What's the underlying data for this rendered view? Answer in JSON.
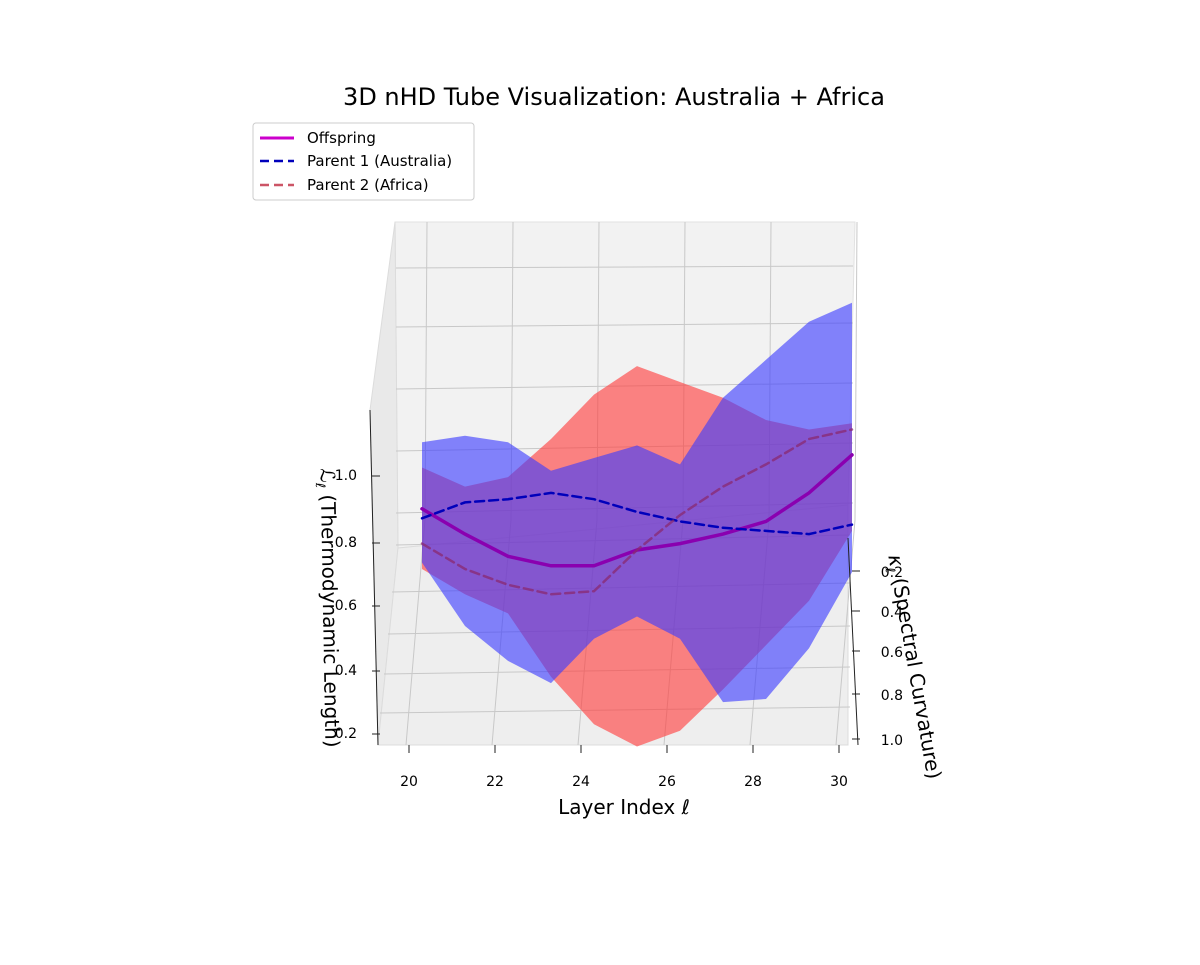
{
  "chart_data": {
    "type": "line",
    "title": "3D nHD Tube Visualization: Australia + Africa",
    "xlabel": "Layer Index ℓ",
    "ylabel": "κ",
    "ylabel_sub": "ℓ",
    "ylabel_rest": " (Spectral Curvature)",
    "zlabel": "ℒ",
    "zlabel_sub": "ℓ",
    "zlabel_rest": " (Thermodynamic Length)",
    "x_ticks": [
      "20",
      "22",
      "24",
      "26",
      "28",
      "30"
    ],
    "y_ticks": [
      "0.2",
      "0.4",
      "0.6",
      "0.8",
      "1.0"
    ],
    "z_ticks": [
      "0.2",
      "0.4",
      "0.6",
      "0.8",
      "1.0"
    ],
    "xlim": [
      19.2,
      30.8
    ],
    "zlim": [
      0.15,
      1.35
    ],
    "grid": true,
    "legend_position": "top-left",
    "x": [
      20,
      21,
      22,
      23,
      24,
      25,
      26,
      27,
      28,
      29,
      30
    ],
    "series": [
      {
        "name": "Offspring",
        "color": "#cc00cc",
        "style": "solid",
        "values": [
          1.05,
          0.97,
          0.9,
          0.87,
          0.87,
          0.92,
          0.94,
          0.97,
          1.01,
          1.1,
          1.22
        ]
      },
      {
        "name": "Parent 1 (Australia)",
        "color": "#0000bb",
        "style": "dashed",
        "values": [
          1.02,
          1.07,
          1.08,
          1.1,
          1.08,
          1.04,
          1.01,
          0.99,
          0.98,
          0.97,
          1.0
        ]
      },
      {
        "name": "Parent 2 (Africa)",
        "color": "#cc5566",
        "style": "dashed",
        "values": [
          0.94,
          0.86,
          0.81,
          0.78,
          0.79,
          0.92,
          1.03,
          1.12,
          1.19,
          1.27,
          1.3
        ]
      }
    ],
    "tubes": [
      {
        "series": "Parent 2 (Africa)",
        "color": "#ff3b3b",
        "upper": [
          1.18,
          1.12,
          1.15,
          1.27,
          1.41,
          1.5,
          1.45,
          1.4,
          1.33,
          1.3,
          1.32
        ],
        "lower": [
          0.86,
          0.78,
          0.72,
          0.52,
          0.37,
          0.3,
          0.35,
          0.48,
          0.62,
          0.76,
          0.98
        ]
      },
      {
        "series": "Parent 1 (Australia)",
        "color": "#3b3bff",
        "upper": [
          1.26,
          1.28,
          1.26,
          1.17,
          1.21,
          1.25,
          1.19,
          1.4,
          1.52,
          1.64,
          1.7
        ],
        "lower": [
          0.88,
          0.68,
          0.57,
          0.5,
          0.64,
          0.71,
          0.64,
          0.44,
          0.45,
          0.61,
          0.85
        ]
      }
    ]
  }
}
